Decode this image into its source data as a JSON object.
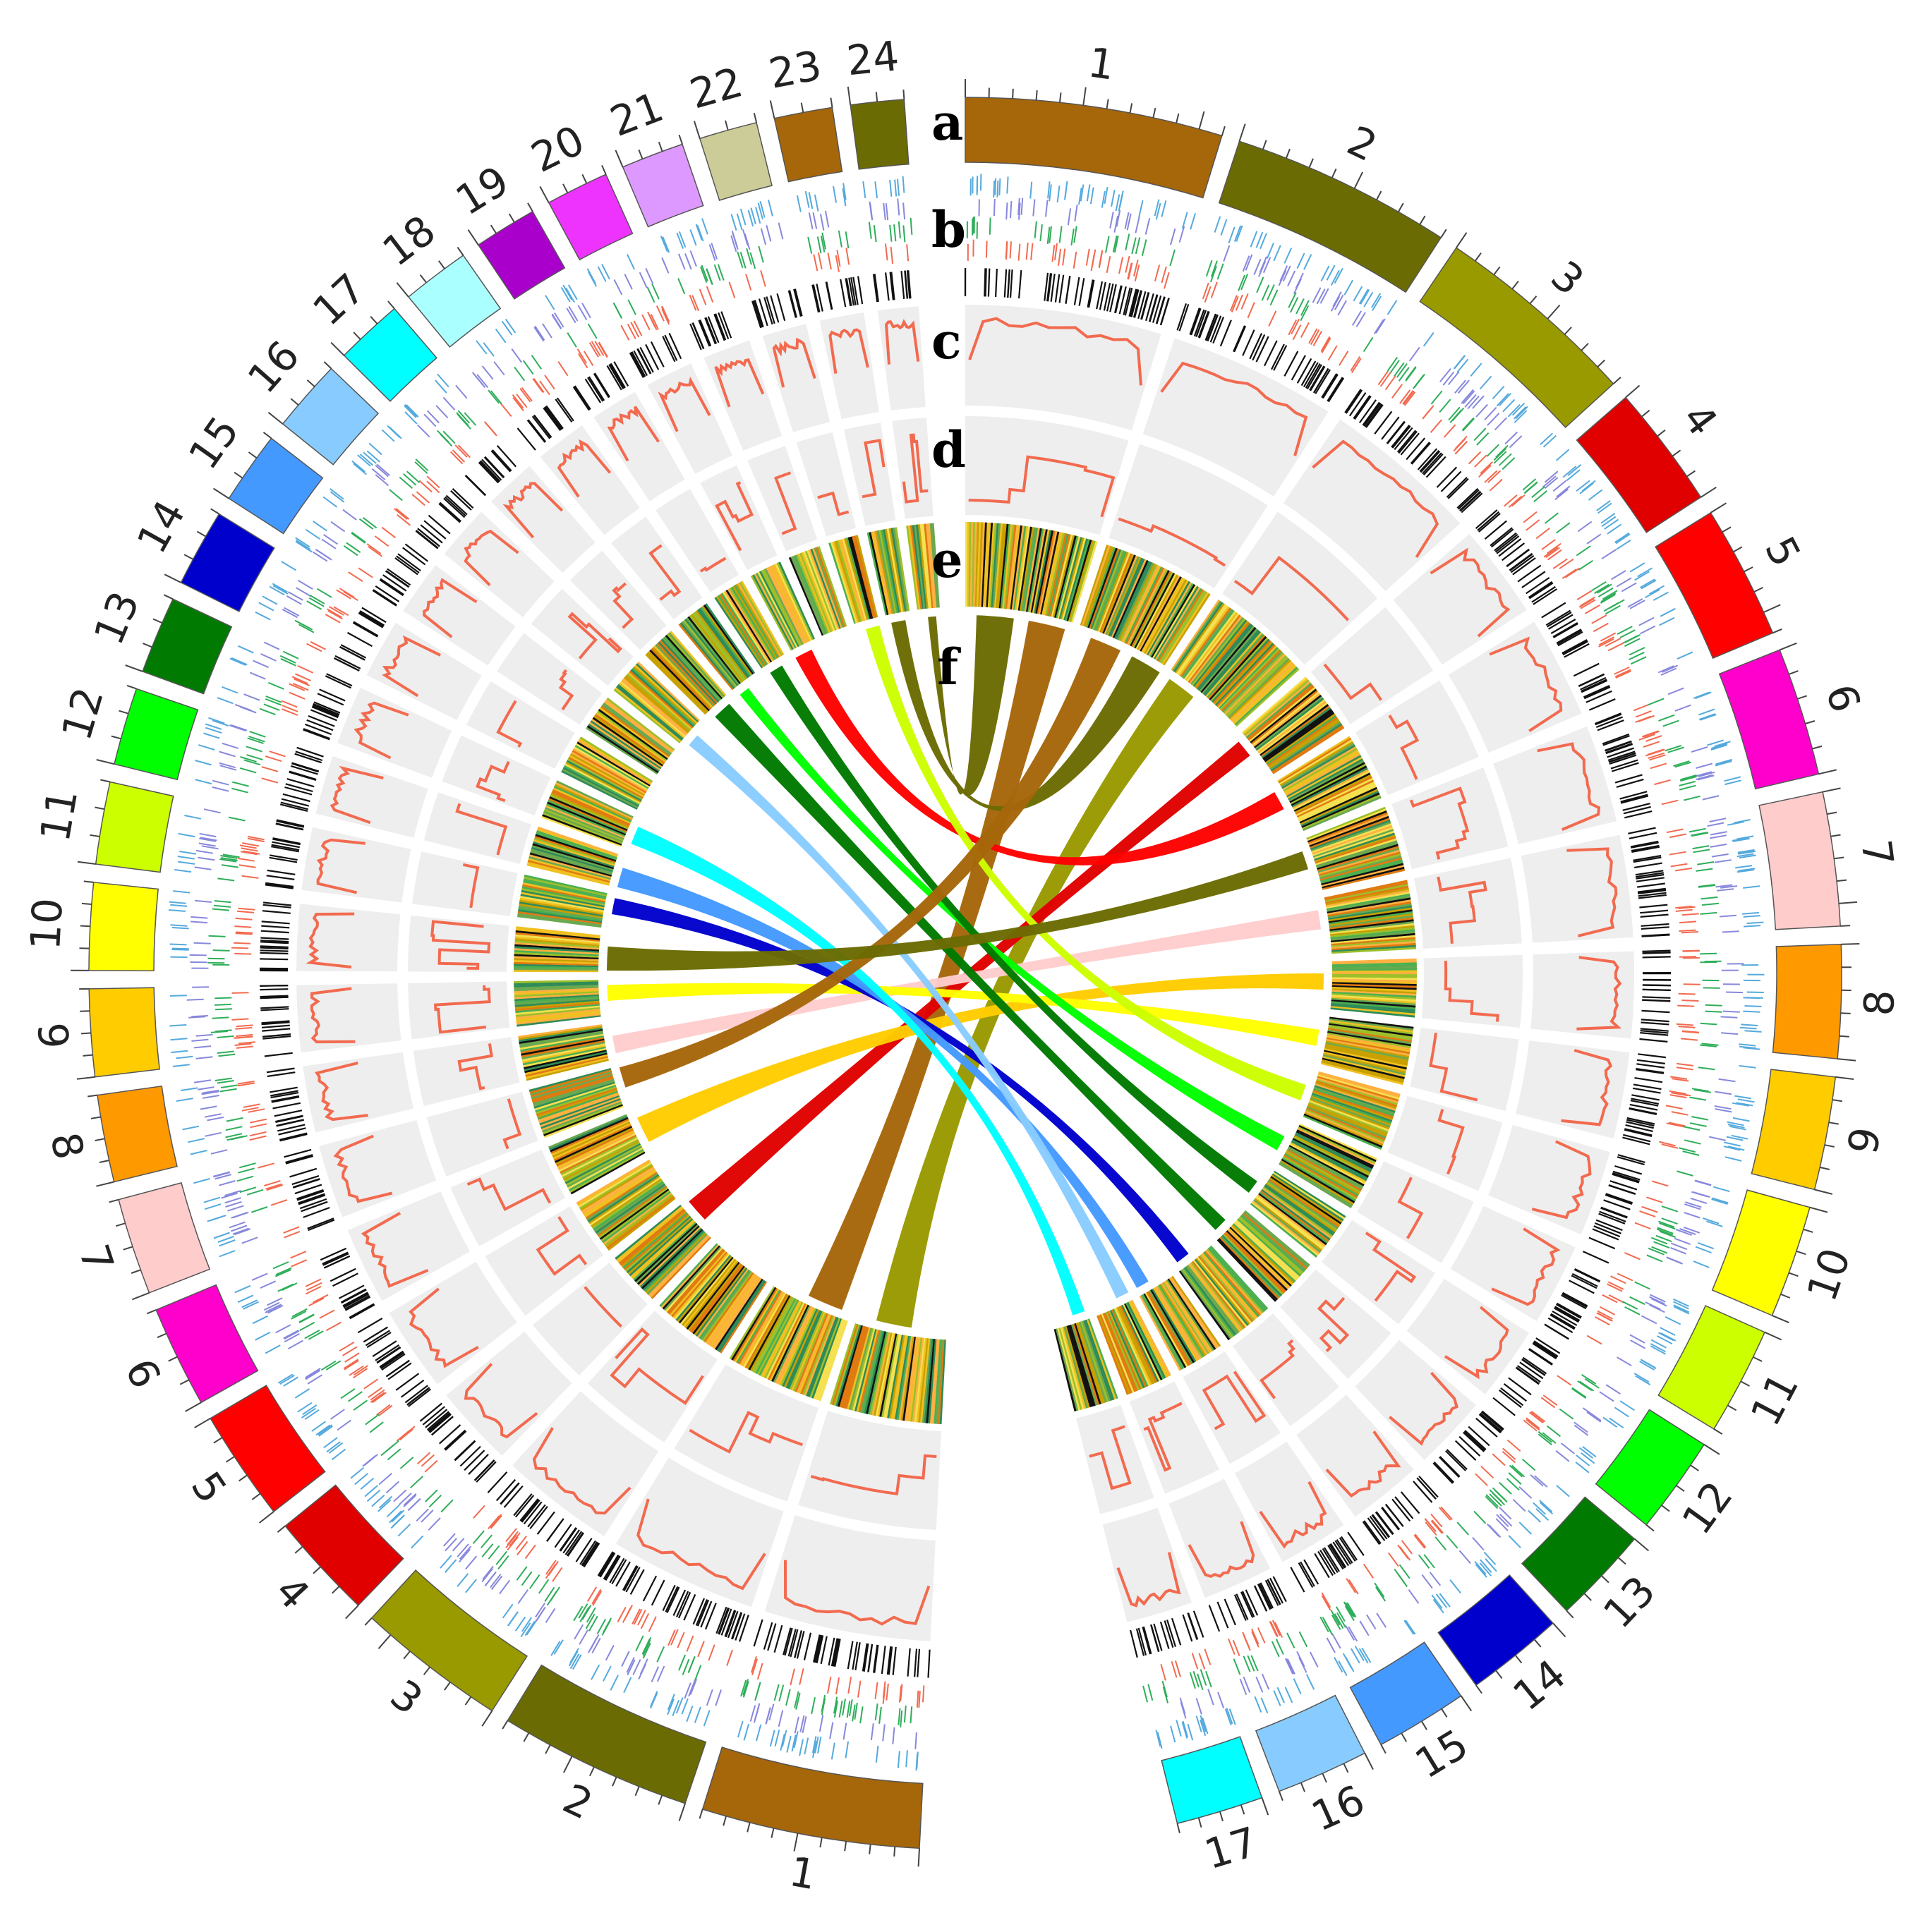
{
  "figure": {
    "track_labels": [
      "a",
      "b",
      "c",
      "d",
      "e",
      "f"
    ],
    "colors": {
      "track_background": "#eeeeee",
      "line_track": "#f26a4f",
      "ruler": "#444444"
    }
  },
  "genome_right": {
    "chromosomes": [
      {
        "label": "1",
        "size": 100,
        "color": "#a6660a"
      },
      {
        "label": "2",
        "size": 86,
        "color": "#6b6b03"
      },
      {
        "label": "3",
        "size": 80,
        "color": "#999900"
      },
      {
        "label": "4",
        "size": 48,
        "color": "#e00000"
      },
      {
        "label": "5",
        "size": 52,
        "color": "#ff0000"
      },
      {
        "label": "6",
        "size": 50,
        "color": "#ff00cc"
      },
      {
        "label": "7",
        "size": 52,
        "color": "#ffcccc"
      },
      {
        "label": "8",
        "size": 44,
        "color": "#ff9900"
      },
      {
        "label": "9",
        "size": 44,
        "color": "#ffcc00"
      },
      {
        "label": "10",
        "size": 44,
        "color": "#ffff00"
      },
      {
        "label": "11",
        "size": 42,
        "color": "#ccff00"
      },
      {
        "label": "12",
        "size": 38,
        "color": "#00ff00"
      },
      {
        "label": "13",
        "size": 38,
        "color": "#007a00"
      },
      {
        "label": "14",
        "size": 38,
        "color": "#0000cc"
      },
      {
        "label": "15",
        "size": 36,
        "color": "#4499ff"
      },
      {
        "label": "16",
        "size": 36,
        "color": "#88ccff"
      },
      {
        "label": "17",
        "size": 34,
        "color": "#00ffff"
      }
    ]
  },
  "genome_left": {
    "chromosomes": [
      {
        "label": "1",
        "size": 90,
        "color": "#a6660a"
      },
      {
        "label": "2",
        "size": 80,
        "color": "#6b6b03"
      },
      {
        "label": "3",
        "size": 62,
        "color": "#999900"
      },
      {
        "label": "4",
        "size": 44,
        "color": "#e00000"
      },
      {
        "label": "5",
        "size": 46,
        "color": "#ff0000"
      },
      {
        "label": "6",
        "size": 42,
        "color": "#ff00cc"
      },
      {
        "label": "7",
        "size": 40,
        "color": "#ffcccc"
      },
      {
        "label": "8",
        "size": 36,
        "color": "#ff9900"
      },
      {
        "label": "9",
        "size": 36,
        "color": "#ffcc00"
      },
      {
        "label": "10",
        "size": 36,
        "color": "#ffff00"
      },
      {
        "label": "11",
        "size": 34,
        "color": "#ccff00"
      },
      {
        "label": "12",
        "size": 32,
        "color": "#00ff00"
      },
      {
        "label": "13",
        "size": 32,
        "color": "#007a00"
      },
      {
        "label": "14",
        "size": 32,
        "color": "#0000cc"
      },
      {
        "label": "15",
        "size": 30,
        "color": "#4499ff"
      },
      {
        "label": "16",
        "size": 30,
        "color": "#88ccff"
      },
      {
        "label": "17",
        "size": 28,
        "color": "#00ffff"
      },
      {
        "label": "18",
        "size": 28,
        "color": "#aaffff"
      },
      {
        "label": "19",
        "size": 26,
        "color": "#aa00cc"
      },
      {
        "label": "20",
        "size": 26,
        "color": "#ee33ff"
      },
      {
        "label": "21",
        "size": 26,
        "color": "#dd99ff"
      },
      {
        "label": "22",
        "size": 24,
        "color": "#cccc99"
      },
      {
        "label": "23",
        "size": 24,
        "color": "#a6660a"
      },
      {
        "label": "24",
        "size": 22,
        "color": "#6b6b03"
      }
    ]
  },
  "links": [
    {
      "from": "R1",
      "to": "L2",
      "color": "#a6660a"
    },
    {
      "from": "R2",
      "to": "L23",
      "color": "#6b6b03"
    },
    {
      "from": "R3",
      "to": "L1",
      "color": "#999900"
    },
    {
      "from": "R4",
      "to": "L4",
      "color": "#e00000"
    },
    {
      "from": "R5",
      "to": "L20",
      "color": "#ff0000"
    },
    {
      "from": "R7",
      "to": "L8",
      "color": "#ffcccc"
    },
    {
      "from": "R8",
      "to": "L6",
      "color": "#ffcc00"
    },
    {
      "from": "R9",
      "to": "L9",
      "color": "#ffff00"
    },
    {
      "from": "R10",
      "to": "L22",
      "color": "#ccff00"
    },
    {
      "from": "R11",
      "to": "L18",
      "color": "#00ff00"
    },
    {
      "from": "R12",
      "to": "L19",
      "color": "#007a00"
    },
    {
      "from": "R13",
      "to": "L17",
      "color": "#007a00"
    },
    {
      "from": "R14",
      "to": "L11",
      "color": "#0000cc"
    },
    {
      "from": "R15",
      "to": "L12",
      "color": "#4499ff"
    },
    {
      "from": "R16",
      "to": "L16",
      "color": "#88ccff"
    },
    {
      "from": "R17",
      "to": "L13",
      "color": "#00ffff"
    },
    {
      "from": "R1",
      "to": "L24",
      "color": "#6b6b03"
    },
    {
      "from": "R2",
      "to": "L7",
      "color": "#a6660a"
    },
    {
      "from": "R6",
      "to": "L10",
      "color": "#6b6b03"
    }
  ]
}
